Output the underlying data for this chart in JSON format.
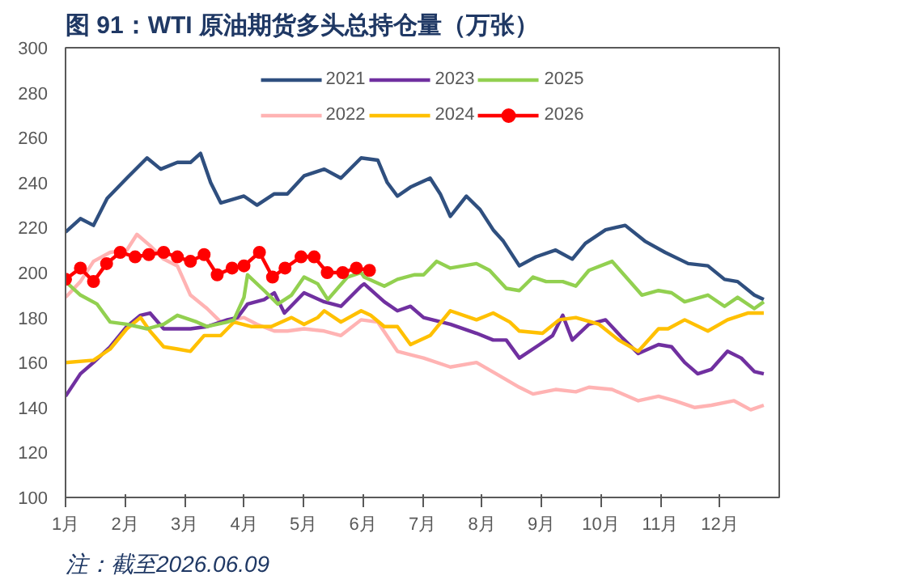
{
  "chart_data": {
    "type": "line",
    "title": "图 91：WTI 原油期货多头总持仓量（万张）",
    "annotations": [
      "注：截至2026.06.09"
    ],
    "xlim": [
      1,
      13
    ],
    "xticks": [
      {
        "value": 1,
        "label": "1月"
      },
      {
        "value": 2,
        "label": "2月"
      },
      {
        "value": 3,
        "label": "3月"
      },
      {
        "value": 4,
        "label": "4月"
      },
      {
        "value": 5,
        "label": "5月"
      },
      {
        "value": 6,
        "label": "6月"
      },
      {
        "value": 7,
        "label": "7月"
      },
      {
        "value": 8,
        "label": "8月"
      },
      {
        "value": 9,
        "label": "9月"
      },
      {
        "value": 10,
        "label": "10月"
      },
      {
        "value": 11,
        "label": "11月"
      },
      {
        "value": 12,
        "label": "12月"
      }
    ],
    "ylim": [
      100,
      300
    ],
    "yticks": [
      100,
      120,
      140,
      160,
      180,
      200,
      220,
      240,
      260,
      280,
      300
    ],
    "grid": false,
    "legend": "top",
    "line_style": "solid",
    "series": [
      {
        "name": "2021",
        "color": "#2f4f7f",
        "marker": "none",
        "x": [
          1.0,
          1.25,
          1.47,
          1.7,
          2.03,
          2.37,
          2.6,
          2.88,
          3.1,
          3.27,
          3.44,
          3.61,
          4.0,
          4.22,
          4.51,
          4.73,
          5.01,
          5.35,
          5.63,
          5.97,
          6.25,
          6.41,
          6.58,
          6.8,
          7.13,
          7.3,
          7.47,
          7.74,
          7.97,
          8.19,
          8.36,
          8.63,
          8.91,
          9.24,
          9.52,
          9.74,
          10.08,
          10.41,
          10.74,
          11.08,
          11.47,
          11.8,
          12.08,
          12.3,
          12.58,
          12.74
        ],
        "values": [
          218,
          224,
          221,
          233,
          242,
          251,
          246,
          249,
          249,
          253,
          240,
          231,
          234,
          230,
          235,
          235,
          243,
          246,
          242,
          251,
          250,
          240,
          234,
          238,
          242,
          235,
          225,
          234,
          228,
          219,
          214,
          203,
          207,
          210,
          206,
          213,
          219,
          221,
          214,
          209,
          204,
          203,
          197,
          196,
          190,
          188
        ]
      },
      {
        "name": "2022",
        "color": "#ffb3b3",
        "marker": "none",
        "x": [
          1.0,
          1.25,
          1.47,
          1.75,
          2.03,
          2.2,
          2.42,
          2.65,
          2.88,
          3.1,
          3.38,
          3.61,
          4.0,
          4.22,
          4.51,
          4.73,
          5.01,
          5.35,
          5.63,
          5.97,
          6.25,
          6.58,
          7.02,
          7.47,
          7.91,
          8.24,
          8.63,
          8.86,
          9.24,
          9.58,
          9.8,
          10.19,
          10.63,
          10.97,
          11.24,
          11.58,
          11.86,
          12.24,
          12.52,
          12.74
        ],
        "values": [
          189,
          196,
          205,
          209,
          210,
          217,
          212,
          206,
          203,
          190,
          184,
          178,
          180,
          177,
          174,
          174,
          175,
          174,
          172,
          179,
          178,
          165,
          162,
          158,
          160,
          155,
          149,
          146,
          148,
          147,
          149,
          148,
          143,
          145,
          143,
          140,
          141,
          143,
          139,
          141
        ]
      },
      {
        "name": "2023",
        "color": "#7030a0",
        "marker": "none",
        "x": [
          1.0,
          1.25,
          1.47,
          1.75,
          2.03,
          2.26,
          2.42,
          2.65,
          3.1,
          3.38,
          3.72,
          3.89,
          4.06,
          4.34,
          4.51,
          4.68,
          5.01,
          5.35,
          5.63,
          5.97,
          6.02,
          6.36,
          6.58,
          6.8,
          7.02,
          7.47,
          7.91,
          8.19,
          8.41,
          8.63,
          8.97,
          9.19,
          9.36,
          9.52,
          9.8,
          10.08,
          10.36,
          10.63,
          10.97,
          11.19,
          11.41,
          11.63,
          11.86,
          12.13,
          12.36,
          12.58,
          12.74
        ],
        "values": [
          145,
          155,
          160,
          167,
          176,
          181,
          182,
          175,
          175,
          176,
          179,
          180,
          186,
          188,
          191,
          182,
          191,
          187,
          185,
          194,
          195,
          187,
          183,
          185,
          180,
          177,
          173,
          170,
          170,
          162,
          168,
          172,
          181,
          170,
          177,
          179,
          171,
          164,
          168,
          167,
          160,
          155,
          157,
          165,
          162,
          156,
          155
        ]
      },
      {
        "name": "2024",
        "color": "#ffc000",
        "marker": "none",
        "x": [
          1.0,
          1.47,
          1.75,
          2.03,
          2.26,
          2.42,
          2.65,
          2.88,
          3.1,
          3.33,
          3.61,
          3.83,
          4.12,
          4.46,
          4.8,
          5.01,
          5.24,
          5.35,
          5.63,
          5.97,
          6.13,
          6.36,
          6.58,
          6.8,
          7.13,
          7.47,
          7.91,
          8.19,
          8.47,
          8.63,
          9.02,
          9.3,
          9.58,
          9.97,
          10.3,
          10.63,
          10.97,
          11.13,
          11.41,
          11.8,
          12.13,
          12.47,
          12.74
        ],
        "values": [
          160,
          161,
          166,
          175,
          180,
          174,
          167,
          166,
          165,
          172,
          172,
          178,
          176,
          176,
          180,
          177,
          180,
          183,
          178,
          183,
          181,
          176,
          176,
          168,
          172,
          183,
          179,
          182,
          178,
          174,
          173,
          179,
          180,
          177,
          170,
          165,
          175,
          175,
          179,
          174,
          179,
          182,
          182
        ]
      },
      {
        "name": "2025",
        "color": "#92d050",
        "marker": "none",
        "x": [
          1.0,
          1.25,
          1.53,
          1.75,
          2.03,
          2.37,
          2.65,
          2.88,
          3.21,
          3.38,
          3.72,
          3.83,
          4.0,
          4.06,
          4.34,
          4.57,
          4.8,
          5.01,
          5.24,
          5.41,
          5.74,
          5.97,
          6.02,
          6.36,
          6.58,
          6.86,
          7.02,
          7.24,
          7.47,
          7.91,
          8.13,
          8.41,
          8.63,
          8.86,
          9.08,
          9.36,
          9.58,
          9.8,
          10.19,
          10.69,
          10.97,
          11.19,
          11.41,
          11.8,
          12.08,
          12.3,
          12.58,
          12.74
        ],
        "values": [
          196,
          190,
          186,
          178,
          177,
          175,
          177,
          181,
          178,
          176,
          178,
          179,
          189,
          199,
          192,
          186,
          190,
          198,
          195,
          188,
          198,
          200,
          198,
          194,
          197,
          199,
          199,
          205,
          202,
          204,
          201,
          193,
          192,
          198,
          196,
          196,
          194,
          201,
          205,
          190,
          192,
          191,
          187,
          190,
          185,
          189,
          184,
          187
        ]
      },
      {
        "name": "2026",
        "color": "#ff0000",
        "marker": "circle",
        "x": [
          1.0,
          1.25,
          1.47,
          1.69,
          1.92,
          2.17,
          2.4,
          2.65,
          2.88,
          3.1,
          3.33,
          3.55,
          3.8,
          4.0,
          4.26,
          4.48,
          4.69,
          4.96,
          5.18,
          5.4,
          5.66,
          5.89,
          6.11
        ],
        "values": [
          197,
          202,
          196,
          204,
          209,
          207,
          208,
          209,
          207,
          205,
          208,
          199,
          202,
          203,
          209,
          198,
          202,
          207,
          207,
          200,
          200,
          202,
          201
        ]
      }
    ]
  }
}
